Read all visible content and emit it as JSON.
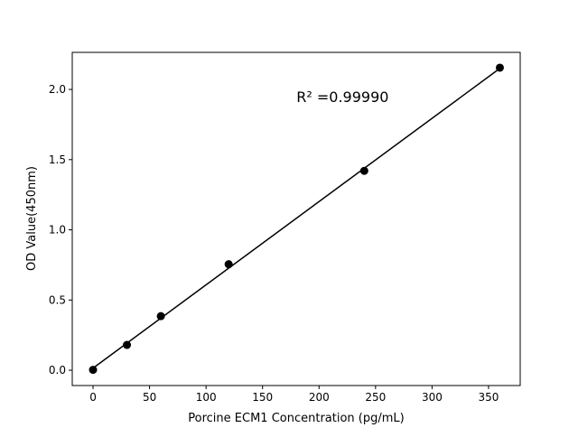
{
  "chart_data": {
    "type": "scatter",
    "title": "",
    "xlabel": "Porcine ECM1 Concentration (pg/mL)",
    "ylabel": "OD Value(450nm)",
    "xlim": [
      -18.4,
      378
    ],
    "ylim": [
      -0.109,
      2.264
    ],
    "xticks": [
      0,
      50,
      100,
      150,
      200,
      250,
      300,
      350
    ],
    "yticks": [
      0.0,
      0.5,
      1.0,
      1.5,
      2.0
    ],
    "xtick_labels": [
      "0",
      "50",
      "100",
      "150",
      "200",
      "250",
      "300",
      "350"
    ],
    "ytick_labels": [
      "0.0",
      "0.5",
      "1.0",
      "1.5",
      "2.0"
    ],
    "grid": false,
    "series": [
      {
        "kind": "scatter",
        "x": [
          0,
          30,
          60,
          120,
          240,
          360
        ],
        "y": [
          0.003,
          0.18,
          0.385,
          0.755,
          1.42,
          2.155
        ],
        "color": "#000000"
      },
      {
        "kind": "line",
        "x": [
          0,
          360
        ],
        "y": [
          0.015,
          2.15
        ],
        "color": "#000000"
      }
    ],
    "annotation": {
      "text": "R² =0.99990",
      "x": 180,
      "y": 1.95
    }
  }
}
